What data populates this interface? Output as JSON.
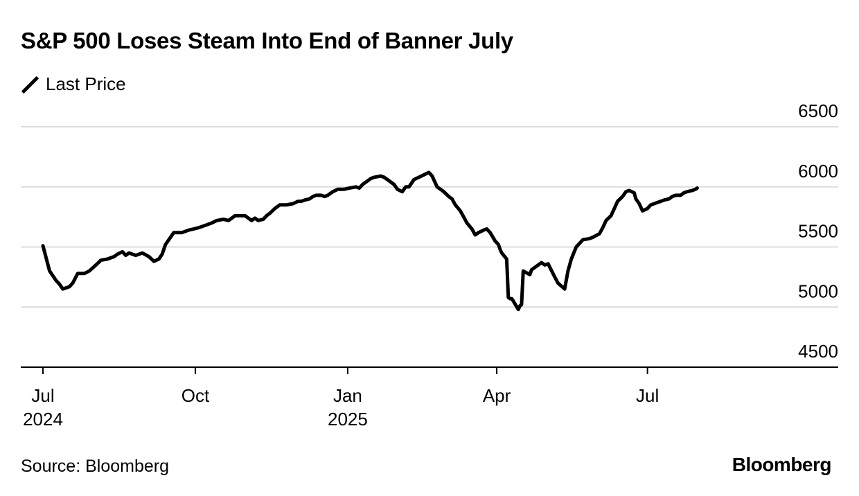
{
  "header": {
    "title": "S&P 500 Loses Steam Into End of Banner July"
  },
  "legend": {
    "label": "Last Price"
  },
  "footer": {
    "source": "Source: Bloomberg",
    "brand": "Bloomberg"
  },
  "colors": {
    "line": "#000000",
    "grid": "#dcdcdc",
    "axis": "#000000"
  },
  "chart_data": {
    "type": "line",
    "title": "S&P 500 Loses Steam Into End of Banner July",
    "xlabel": "",
    "ylabel": "",
    "ylim": [
      4500,
      6500
    ],
    "yticks": [
      4500,
      5000,
      5500,
      6000,
      6500
    ],
    "y_axis_position": "right",
    "grid": "horizontal",
    "legend_position": "top-left",
    "xlim": [
      "2024-06-28",
      "2025-09-09"
    ],
    "xticks": [
      {
        "date": "2024-07-01",
        "label": "Jul",
        "sublabel": "2024"
      },
      {
        "date": "2024-10-01",
        "label": "Oct",
        "sublabel": ""
      },
      {
        "date": "2025-01-01",
        "label": "Jan",
        "sublabel": "2025"
      },
      {
        "date": "2025-04-01",
        "label": "Apr",
        "sublabel": ""
      },
      {
        "date": "2025-07-01",
        "label": "Jul",
        "sublabel": ""
      }
    ],
    "series": [
      {
        "name": "Last Price",
        "points": [
          [
            "2024-07-01",
            5510
          ],
          [
            "2024-07-05",
            5300
          ],
          [
            "2024-07-09",
            5220
          ],
          [
            "2024-07-11",
            5190
          ],
          [
            "2024-07-13",
            5150
          ],
          [
            "2024-07-15",
            5160
          ],
          [
            "2024-07-17",
            5170
          ],
          [
            "2024-07-19",
            5200
          ],
          [
            "2024-07-22",
            5280
          ],
          [
            "2024-07-26",
            5280
          ],
          [
            "2024-07-29",
            5300
          ],
          [
            "2024-08-02",
            5350
          ],
          [
            "2024-08-05",
            5390
          ],
          [
            "2024-08-09",
            5400
          ],
          [
            "2024-08-13",
            5420
          ],
          [
            "2024-08-15",
            5440
          ],
          [
            "2024-08-18",
            5460
          ],
          [
            "2024-08-20",
            5430
          ],
          [
            "2024-08-22",
            5450
          ],
          [
            "2024-08-26",
            5430
          ],
          [
            "2024-08-30",
            5450
          ],
          [
            "2024-09-03",
            5420
          ],
          [
            "2024-09-06",
            5380
          ],
          [
            "2024-09-09",
            5400
          ],
          [
            "2024-09-11",
            5440
          ],
          [
            "2024-09-13",
            5520
          ],
          [
            "2024-09-16",
            5580
          ],
          [
            "2024-09-18",
            5620
          ],
          [
            "2024-09-23",
            5620
          ],
          [
            "2024-09-27",
            5640
          ],
          [
            "2024-09-30",
            5650
          ],
          [
            "2024-10-03",
            5660
          ],
          [
            "2024-10-07",
            5680
          ],
          [
            "2024-10-11",
            5700
          ],
          [
            "2024-10-14",
            5720
          ],
          [
            "2024-10-18",
            5730
          ],
          [
            "2024-10-21",
            5720
          ],
          [
            "2024-10-23",
            5740
          ],
          [
            "2024-10-25",
            5760
          ],
          [
            "2024-10-28",
            5760
          ],
          [
            "2024-10-31",
            5760
          ],
          [
            "2024-11-04",
            5720
          ],
          [
            "2024-11-06",
            5740
          ],
          [
            "2024-11-08",
            5720
          ],
          [
            "2024-11-11",
            5730
          ],
          [
            "2024-11-13",
            5760
          ],
          [
            "2024-11-15",
            5780
          ],
          [
            "2024-11-18",
            5820
          ],
          [
            "2024-11-21",
            5850
          ],
          [
            "2024-11-25",
            5850
          ],
          [
            "2024-11-29",
            5860
          ],
          [
            "2024-12-02",
            5880
          ],
          [
            "2024-12-04",
            5880
          ],
          [
            "2024-12-06",
            5890
          ],
          [
            "2024-12-09",
            5900
          ],
          [
            "2024-12-11",
            5920
          ],
          [
            "2024-12-13",
            5930
          ],
          [
            "2024-12-16",
            5930
          ],
          [
            "2024-12-18",
            5920
          ],
          [
            "2024-12-20",
            5930
          ],
          [
            "2024-12-23",
            5960
          ],
          [
            "2024-12-26",
            5980
          ],
          [
            "2024-12-30",
            5980
          ],
          [
            "2025-01-02",
            5990
          ],
          [
            "2025-01-06",
            6000
          ],
          [
            "2025-01-08",
            5990
          ],
          [
            "2025-01-10",
            6020
          ],
          [
            "2025-01-13",
            6050
          ],
          [
            "2025-01-15",
            6070
          ],
          [
            "2025-01-17",
            6080
          ],
          [
            "2025-01-21",
            6090
          ],
          [
            "2025-01-23",
            6080
          ],
          [
            "2025-01-25",
            6060
          ],
          [
            "2025-01-27",
            6040
          ],
          [
            "2025-01-29",
            6020
          ],
          [
            "2025-01-31",
            5980
          ],
          [
            "2025-02-03",
            5960
          ],
          [
            "2025-02-05",
            6000
          ],
          [
            "2025-02-07",
            6000
          ],
          [
            "2025-02-10",
            6060
          ],
          [
            "2025-02-13",
            6080
          ],
          [
            "2025-02-16",
            6100
          ],
          [
            "2025-02-19",
            6120
          ],
          [
            "2025-02-21",
            6090
          ],
          [
            "2025-02-24",
            6000
          ],
          [
            "2025-02-26",
            5980
          ],
          [
            "2025-02-28",
            5960
          ],
          [
            "2025-03-03",
            5920
          ],
          [
            "2025-03-05",
            5900
          ],
          [
            "2025-03-07",
            5850
          ],
          [
            "2025-03-10",
            5800
          ],
          [
            "2025-03-12",
            5750
          ],
          [
            "2025-03-14",
            5700
          ],
          [
            "2025-03-17",
            5650
          ],
          [
            "2025-03-19",
            5600
          ],
          [
            "2025-03-21",
            5620
          ],
          [
            "2025-03-24",
            5640
          ],
          [
            "2025-03-26",
            5650
          ],
          [
            "2025-03-28",
            5620
          ],
          [
            "2025-03-31",
            5550
          ],
          [
            "2025-04-02",
            5520
          ],
          [
            "2025-04-03",
            5480
          ],
          [
            "2025-04-04",
            5450
          ],
          [
            "2025-04-07",
            5400
          ],
          [
            "2025-04-08",
            5080
          ],
          [
            "2025-04-09",
            5070
          ],
          [
            "2025-04-10",
            5070
          ],
          [
            "2025-04-11",
            5050
          ],
          [
            "2025-04-14",
            4980
          ],
          [
            "2025-04-15",
            5010
          ],
          [
            "2025-04-16",
            5020
          ],
          [
            "2025-04-17",
            5300
          ],
          [
            "2025-04-21",
            5270
          ],
          [
            "2025-04-22",
            5310
          ],
          [
            "2025-04-24",
            5330
          ],
          [
            "2025-04-28",
            5370
          ],
          [
            "2025-04-30",
            5350
          ],
          [
            "2025-05-02",
            5360
          ],
          [
            "2025-05-06",
            5250
          ],
          [
            "2025-05-08",
            5200
          ],
          [
            "2025-05-12",
            5150
          ],
          [
            "2025-05-14",
            5300
          ],
          [
            "2025-05-16",
            5400
          ],
          [
            "2025-05-19",
            5500
          ],
          [
            "2025-05-21",
            5530
          ],
          [
            "2025-05-23",
            5560
          ],
          [
            "2025-05-27",
            5570
          ],
          [
            "2025-05-29",
            5580
          ],
          [
            "2025-06-02",
            5610
          ],
          [
            "2025-06-04",
            5660
          ],
          [
            "2025-06-06",
            5720
          ],
          [
            "2025-06-09",
            5760
          ],
          [
            "2025-06-11",
            5820
          ],
          [
            "2025-06-13",
            5880
          ],
          [
            "2025-06-16",
            5920
          ],
          [
            "2025-06-18",
            5960
          ],
          [
            "2025-06-20",
            5970
          ],
          [
            "2025-06-23",
            5950
          ],
          [
            "2025-06-24",
            5900
          ],
          [
            "2025-06-26",
            5860
          ],
          [
            "2025-06-28",
            5800
          ],
          [
            "2025-07-01",
            5820
          ],
          [
            "2025-07-03",
            5850
          ],
          [
            "2025-07-07",
            5870
          ],
          [
            "2025-07-09",
            5880
          ],
          [
            "2025-07-11",
            5890
          ],
          [
            "2025-07-14",
            5900
          ],
          [
            "2025-07-16",
            5920
          ],
          [
            "2025-07-18",
            5930
          ],
          [
            "2025-07-21",
            5930
          ],
          [
            "2025-07-23",
            5950
          ],
          [
            "2025-07-25",
            5960
          ],
          [
            "2025-07-28",
            5970
          ],
          [
            "2025-07-30",
            5980
          ],
          [
            "2025-07-31",
            5990
          ]
        ]
      }
    ]
  }
}
